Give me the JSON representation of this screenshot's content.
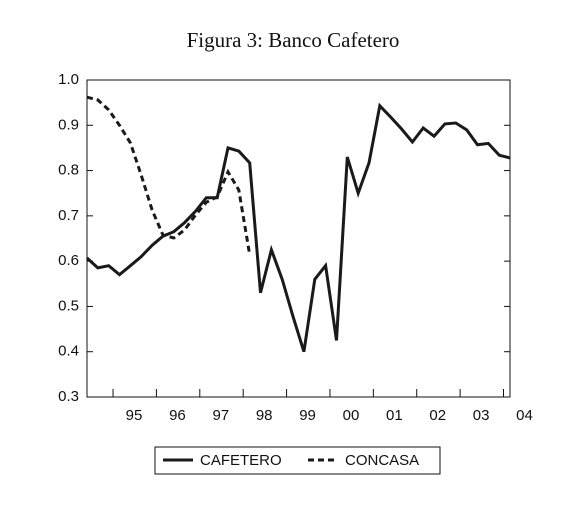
{
  "chart_data": {
    "type": "line",
    "title": "Figura 3: Banco Cafetero",
    "x": [
      1994.4,
      1994.65,
      1994.9,
      1995.15,
      1995.4,
      1995.65,
      1995.9,
      1996.15,
      1996.4,
      1996.65,
      1996.9,
      1997.15,
      1997.4,
      1997.65,
      1997.9,
      1998.15,
      1998.4,
      1998.65,
      1998.9,
      1999.15,
      1999.4,
      1999.65,
      1999.9,
      2000.15,
      2000.4,
      2000.65,
      2000.9,
      2001.15,
      2001.4,
      2001.65,
      2001.9,
      2002.15,
      2002.4,
      2002.65,
      2002.9,
      2003.15,
      2003.4,
      2003.65,
      2003.9,
      2004.15
    ],
    "series": [
      {
        "name": "CAFETERO",
        "color": "#1a1a1a",
        "dash": "solid",
        "values": [
          0.607,
          0.585,
          0.59,
          0.57,
          0.59,
          0.61,
          0.635,
          0.655,
          0.665,
          0.685,
          0.71,
          0.74,
          0.74,
          0.85,
          0.843,
          0.817,
          0.53,
          0.625,
          0.56,
          0.477,
          0.4,
          0.56,
          0.59,
          0.425,
          0.83,
          0.75,
          0.817,
          0.943,
          0.918,
          0.892,
          0.863,
          0.894,
          0.876,
          0.903,
          0.905,
          0.89,
          0.857,
          0.86,
          0.834,
          0.828
        ]
      },
      {
        "name": "CONCASA",
        "color": "#1a1a1a",
        "dash": "dashed",
        "values": [
          0.962,
          0.956,
          0.934,
          0.9,
          0.861,
          0.79,
          0.713,
          0.658,
          0.651,
          0.669,
          0.702,
          0.73,
          0.742,
          0.797,
          0.757,
          0.614,
          null,
          null,
          null,
          null,
          null,
          null,
          null,
          null,
          null,
          null,
          null,
          null,
          null,
          null,
          null,
          null,
          null,
          null,
          null,
          null,
          null,
          null,
          null,
          null
        ]
      }
    ],
    "xlim": [
      1994.4,
      2004.15
    ],
    "xticks": [
      {
        "value": 1995,
        "label": "95"
      },
      {
        "value": 1996,
        "label": "96"
      },
      {
        "value": 1997,
        "label": "97"
      },
      {
        "value": 1998,
        "label": "98"
      },
      {
        "value": 1999,
        "label": "99"
      },
      {
        "value": 2000,
        "label": "00"
      },
      {
        "value": 2001,
        "label": "01"
      },
      {
        "value": 2002,
        "label": "02"
      },
      {
        "value": 2003,
        "label": "03"
      },
      {
        "value": 2004,
        "label": "04"
      }
    ],
    "ylim": [
      0.3,
      1
    ],
    "yticks": [
      0.3,
      0.4,
      0.5,
      0.6,
      0.7,
      0.8,
      0.9,
      {
        "value": 1,
        "label": "1.0"
      }
    ],
    "grid": false
  }
}
